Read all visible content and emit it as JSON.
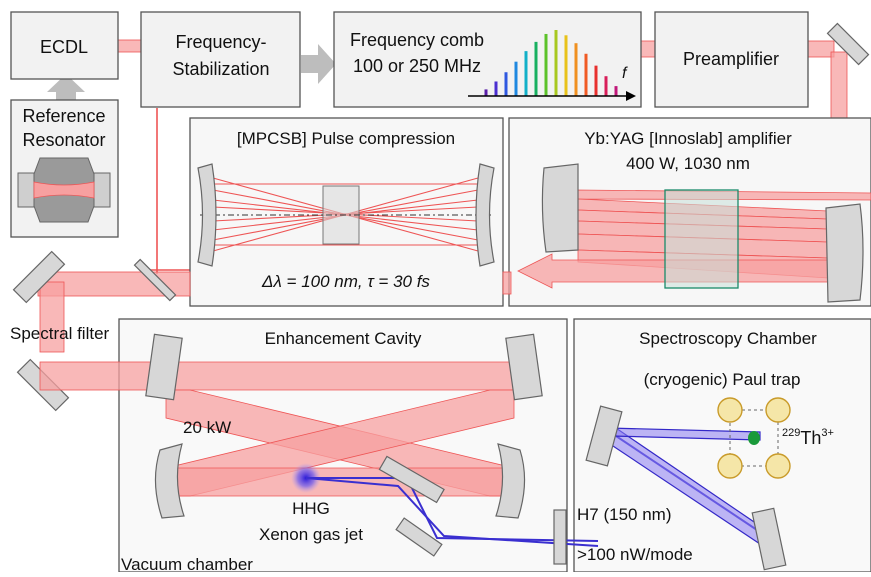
{
  "boxes": {
    "ecdl": "ECDL",
    "stabilization_line1": "Frequency-",
    "stabilization_line2": "Stabilization",
    "comb_line1": "Frequency comb",
    "comb_line2": "100 or 250 MHz",
    "comb_axis_label": "f",
    "preamplifier": "Preamplifier",
    "resonator_line1": "Reference",
    "resonator_line2": "Resonator",
    "compression_title": "[MPCSB] Pulse compression",
    "compression_params": "Δλ = 100 nm, τ = 30 fs",
    "amplifier_title": "Yb:YAG [Innoslab] amplifier",
    "amplifier_params": "400 W, 1030 nm"
  },
  "labels": {
    "spectral_filter": "Spectral filter",
    "enhancement_cavity": "Enhancement Cavity",
    "power": "20 kW",
    "hhg": "HHG",
    "gas_jet": "Xenon gas jet",
    "vacuum_chamber": "Vacuum chamber",
    "spectroscopy_chamber": "Spectroscopy Chamber",
    "paul_trap": "(cryogenic) Paul trap",
    "ion_mass": "229",
    "ion_symbol": "Th",
    "ion_charge": "3+",
    "harmonic": "H7 (150 nm)",
    "power_per_mode": ">100 nW/mode"
  },
  "comb_teeth": [
    {
      "color": "#5a1fa8",
      "height": 0.1
    },
    {
      "color": "#4b2fd0",
      "height": 0.22
    },
    {
      "color": "#2f58e0",
      "height": 0.36
    },
    {
      "color": "#1f88e0",
      "height": 0.52
    },
    {
      "color": "#12b0c8",
      "height": 0.68
    },
    {
      "color": "#18b060",
      "height": 0.82
    },
    {
      "color": "#5cc22a",
      "height": 0.94
    },
    {
      "color": "#a8c820",
      "height": 1.0
    },
    {
      "color": "#e8c21a",
      "height": 0.92
    },
    {
      "color": "#f09020",
      "height": 0.8
    },
    {
      "color": "#f05a24",
      "height": 0.64
    },
    {
      "color": "#e8302e",
      "height": 0.46
    },
    {
      "color": "#d81e5a",
      "height": 0.3
    },
    {
      "color": "#c0187a",
      "height": 0.15
    }
  ],
  "colors": {
    "laser": "#f7a0a0",
    "laser_edge": "#ee5555",
    "uv": "#3a2fd0",
    "ion": "#1a9a3a",
    "trap_electrode": "#f5e6a8",
    "crystal": "#1a8a6a"
  }
}
